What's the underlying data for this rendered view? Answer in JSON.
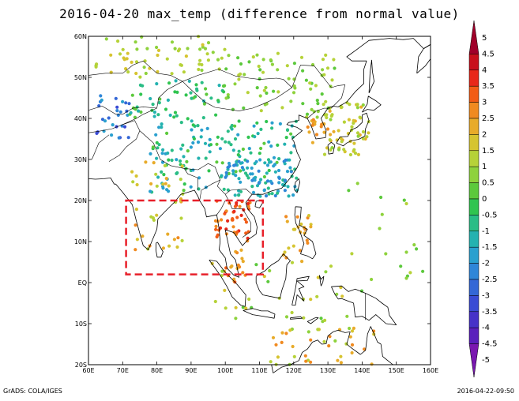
{
  "title": "2016-04-20 max_temp (difference from normal value)",
  "footer": {
    "left": "GrADS: COLA/IGES",
    "right": "2016-04-22-09:50"
  },
  "map": {
    "lon_range": [
      60,
      160
    ],
    "lat_range": [
      -20,
      60
    ],
    "lon_ticks": [
      {
        "v": 60,
        "label": "60E"
      },
      {
        "v": 70,
        "label": "70E"
      },
      {
        "v": 80,
        "label": "80E"
      },
      {
        "v": 90,
        "label": "90E"
      },
      {
        "v": 100,
        "label": "100E"
      },
      {
        "v": 110,
        "label": "110E"
      },
      {
        "v": 120,
        "label": "120E"
      },
      {
        "v": 130,
        "label": "130E"
      },
      {
        "v": 140,
        "label": "140E"
      },
      {
        "v": 150,
        "label": "150E"
      },
      {
        "v": 160,
        "label": "160E"
      }
    ],
    "lat_ticks": [
      {
        "v": 60,
        "label": "60N"
      },
      {
        "v": 50,
        "label": "50N"
      },
      {
        "v": 40,
        "label": "40N"
      },
      {
        "v": 30,
        "label": "30N"
      },
      {
        "v": 20,
        "label": "20N"
      },
      {
        "v": 10,
        "label": "10N"
      },
      {
        "v": 0,
        "label": "EQ"
      },
      {
        "v": -10,
        "label": "10S"
      },
      {
        "v": -20,
        "label": "20S"
      }
    ],
    "highlight_box": {
      "lon": [
        71,
        111
      ],
      "lat": [
        2,
        20
      ],
      "color": "#e8202a"
    },
    "station_clusters": [
      {
        "lon": [
          60,
          160
        ],
        "lat": [
          -20,
          60
        ],
        "n": 0,
        "v": [
          0,
          0
        ]
      },
      {
        "lon": [
          62,
          100
        ],
        "lat": [
          50,
          60
        ],
        "n": 60,
        "v": [
          0.5,
          1.8
        ]
      },
      {
        "lon": [
          60,
          72
        ],
        "lat": [
          35,
          46
        ],
        "n": 28,
        "v": [
          -3.5,
          -1.5
        ]
      },
      {
        "lon": [
          72,
          100
        ],
        "lat": [
          40,
          50
        ],
        "n": 55,
        "v": [
          -1.5,
          0.5
        ]
      },
      {
        "lon": [
          100,
          132
        ],
        "lat": [
          40,
          56
        ],
        "n": 80,
        "v": [
          0,
          1.5
        ]
      },
      {
        "lon": [
          78,
          122
        ],
        "lat": [
          22,
          40
        ],
        "n": 170,
        "v": [
          -2,
          0.2
        ]
      },
      {
        "lon": [
          100,
          121
        ],
        "lat": [
          21,
          30
        ],
        "n": 70,
        "v": [
          -2.5,
          -0.8
        ]
      },
      {
        "lon": [
          124,
          130
        ],
        "lat": [
          34,
          40
        ],
        "n": 16,
        "v": [
          2,
          3
        ]
      },
      {
        "lon": [
          129,
          142
        ],
        "lat": [
          31,
          44
        ],
        "n": 60,
        "v": [
          0.8,
          2.2
        ]
      },
      {
        "lon": [
          72,
          88
        ],
        "lat": [
          8,
          30
        ],
        "n": 40,
        "v": [
          1,
          2.8
        ]
      },
      {
        "lon": [
          97,
          108
        ],
        "lat": [
          10,
          20
        ],
        "n": 45,
        "v": [
          2.5,
          3.8
        ]
      },
      {
        "lon": [
          99,
          106
        ],
        "lat": [
          0,
          8
        ],
        "n": 18,
        "v": [
          2,
          3.5
        ]
      },
      {
        "lon": [
          117,
          126
        ],
        "lat": [
          5,
          18
        ],
        "n": 24,
        "v": [
          1.5,
          3
        ]
      },
      {
        "lon": [
          95,
          140
        ],
        "lat": [
          -10,
          5
        ],
        "n": 35,
        "v": [
          0.3,
          2
        ]
      },
      {
        "lon": [
          113,
          145
        ],
        "lat": [
          -20,
          -11
        ],
        "n": 40,
        "v": [
          0.5,
          3
        ]
      },
      {
        "lon": [
          135,
          158
        ],
        "lat": [
          0,
          25
        ],
        "n": 18,
        "v": [
          0,
          1.5
        ]
      }
    ]
  },
  "colorbar": {
    "labels": [
      "5",
      "4.5",
      "4",
      "3.5",
      "3",
      "2.5",
      "2",
      "1.5",
      "1",
      "0.5",
      "0",
      "-0.5",
      "-1",
      "-1.5",
      "-2",
      "-2.5",
      "-3",
      "-3.5",
      "-4",
      "-4.5",
      "-5"
    ],
    "colors": [
      "#a0002a",
      "#c8101c",
      "#e8281a",
      "#f25c16",
      "#f08a20",
      "#e8ab2a",
      "#d6c430",
      "#b6d238",
      "#8ed23c",
      "#5cc93c",
      "#30c450",
      "#2abd86",
      "#24b2b0",
      "#2aa0cf",
      "#2f86d8",
      "#3467d6",
      "#3a4bd4",
      "#4632c8",
      "#5a20bc",
      "#7a18b0"
    ]
  }
}
